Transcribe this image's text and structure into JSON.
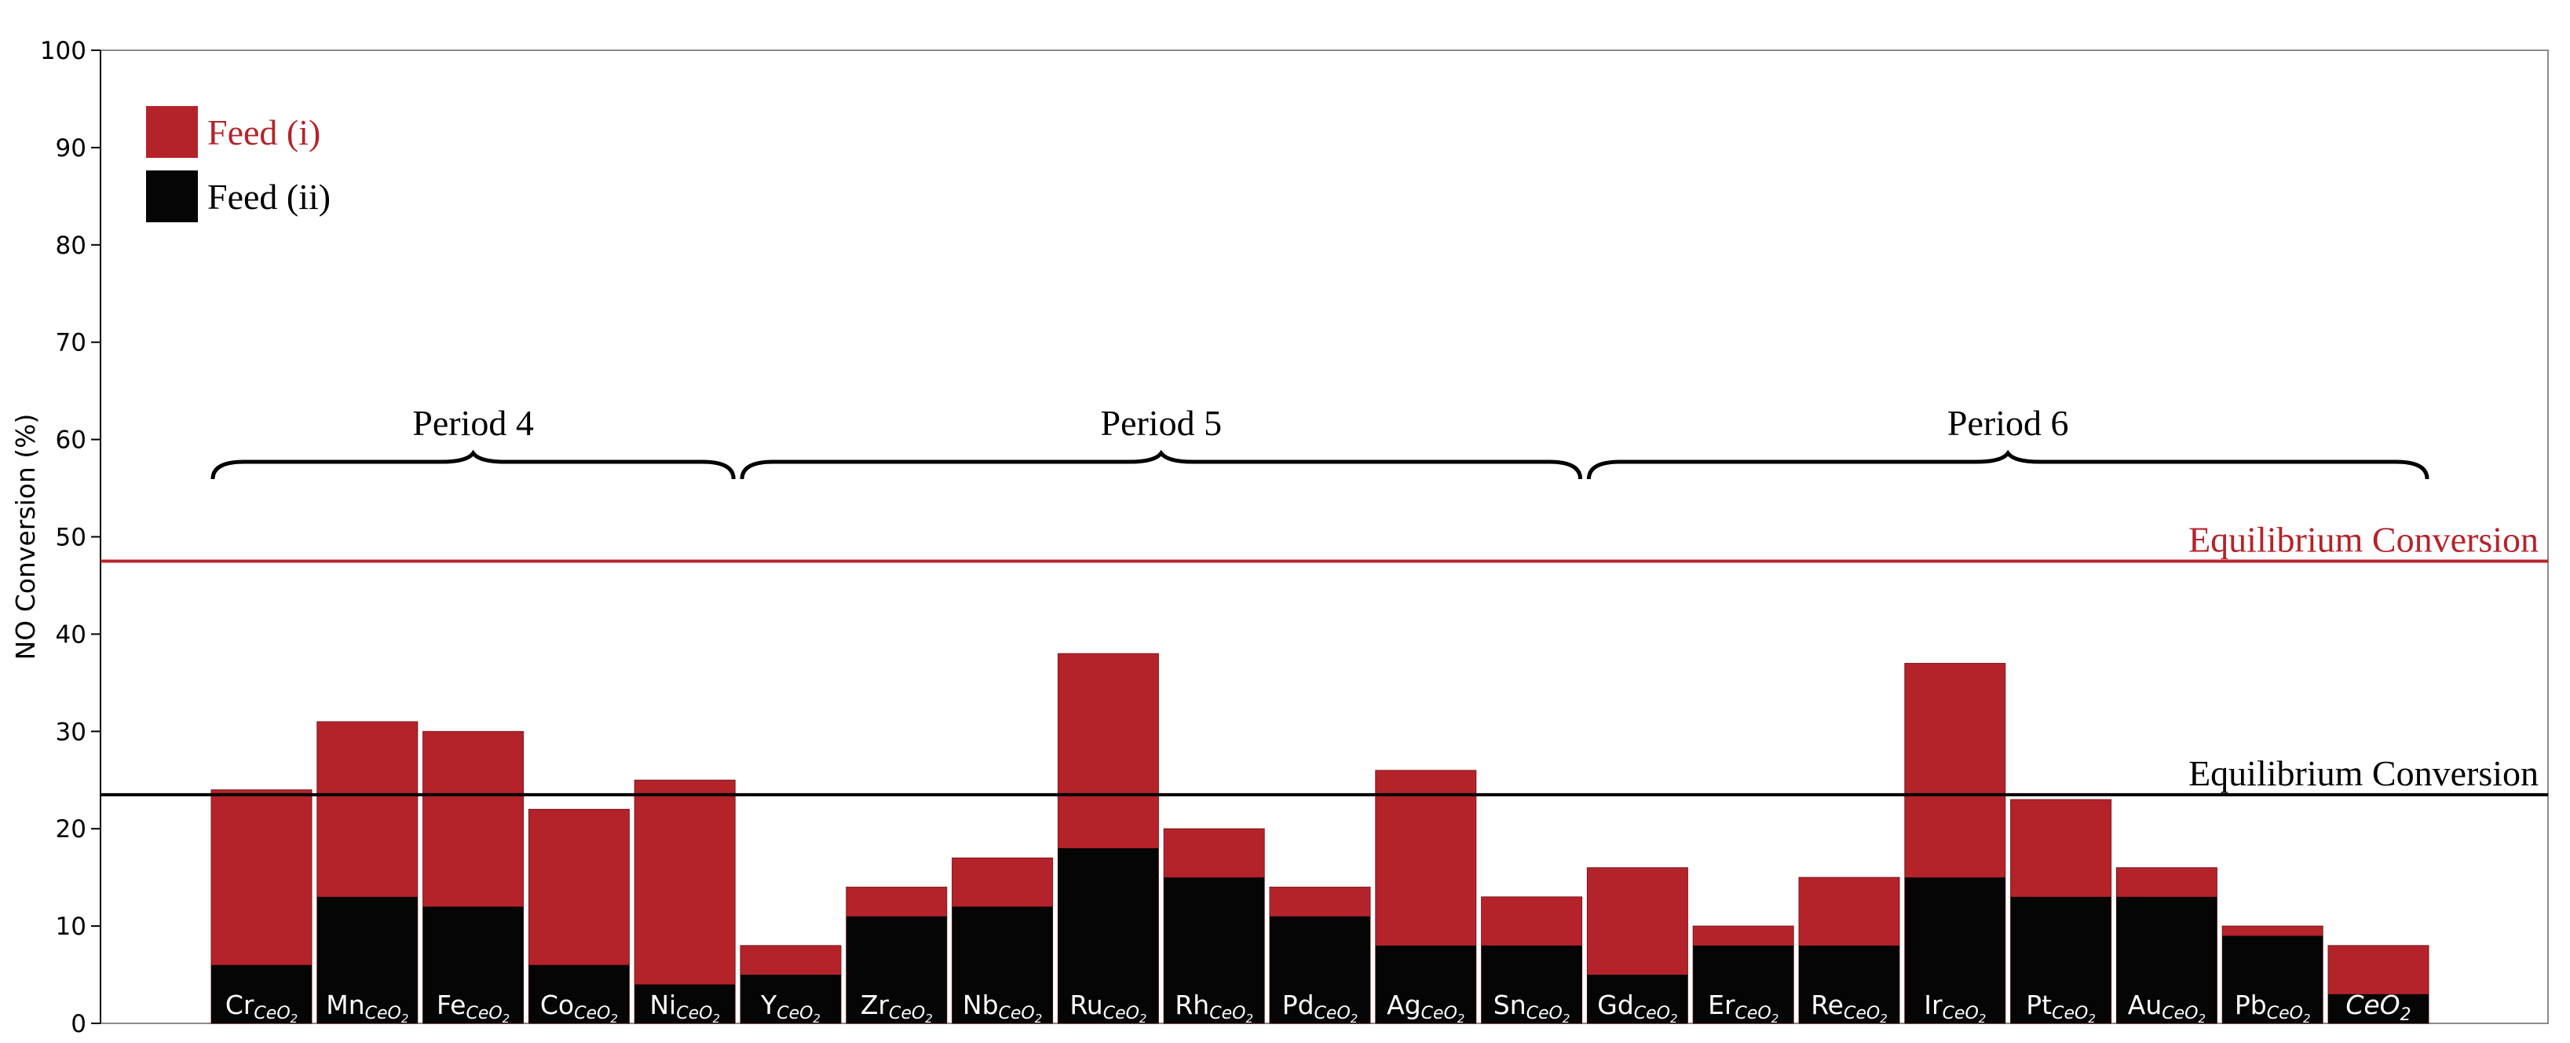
{
  "chart_data": {
    "type": "bar",
    "stacking": "overlaid",
    "ylabel": "NO Conversion (%)",
    "ylim": [
      0,
      100
    ],
    "yticks": [
      0,
      10,
      20,
      30,
      40,
      50,
      60,
      70,
      80,
      90,
      100
    ],
    "grid": false,
    "legend_position": "top-left",
    "categories": [
      {
        "label": "Cr",
        "sub": "CeO2"
      },
      {
        "label": "Mn",
        "sub": "CeO2"
      },
      {
        "label": "Fe",
        "sub": "CeO2"
      },
      {
        "label": "Co",
        "sub": "CeO2"
      },
      {
        "label": "Ni",
        "sub": "CeO2"
      },
      {
        "label": "Y",
        "sub": "CeO2"
      },
      {
        "label": "Zr",
        "sub": "CeO2"
      },
      {
        "label": "Nb",
        "sub": "CeO2"
      },
      {
        "label": "Ru",
        "sub": "CeO2"
      },
      {
        "label": "Rh",
        "sub": "CeO2"
      },
      {
        "label": "Pd",
        "sub": "CeO2"
      },
      {
        "label": "Ag",
        "sub": "CeO2"
      },
      {
        "label": "Sn",
        "sub": "CeO2"
      },
      {
        "label": "Gd",
        "sub": "CeO2"
      },
      {
        "label": "Er",
        "sub": "CeO2"
      },
      {
        "label": "Re",
        "sub": "CeO2"
      },
      {
        "label": "Ir",
        "sub": "CeO2"
      },
      {
        "label": "Pt",
        "sub": "CeO2"
      },
      {
        "label": "Au",
        "sub": "CeO2"
      },
      {
        "label": "Pb",
        "sub": "CeO2"
      },
      {
        "label": "CeO",
        "sub": "2"
      }
    ],
    "series": [
      {
        "name": "Feed (i)",
        "color": "#b5232a",
        "values": [
          24,
          31,
          30,
          22,
          25,
          8,
          14,
          17,
          38,
          20,
          14,
          26,
          13,
          16,
          10,
          15,
          37,
          23,
          16,
          10,
          8
        ]
      },
      {
        "name": "Feed (ii)",
        "color": "#050505",
        "values": [
          6,
          13,
          12,
          6,
          4,
          5,
          11,
          12,
          18,
          15,
          11,
          8,
          8,
          5,
          8,
          8,
          15,
          13,
          13,
          9,
          3
        ]
      }
    ],
    "reference_lines": [
      {
        "label": "Equilibrium Conversion",
        "value": 47.5,
        "color": "#b5232a"
      },
      {
        "label": "Equilibrium Conversion",
        "value": 23.5,
        "color": "#000000"
      }
    ],
    "groups": [
      {
        "label": "Period 4",
        "from": 0,
        "to": 4
      },
      {
        "label": "Period 5",
        "from": 5,
        "to": 12
      },
      {
        "label": "Period 6",
        "from": 13,
        "to": 20
      }
    ]
  }
}
